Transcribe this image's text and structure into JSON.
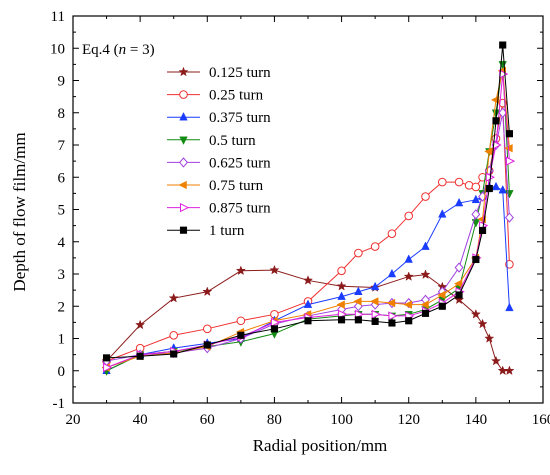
{
  "chart_data": {
    "type": "line",
    "title": "",
    "annotation": {
      "prefix": "Eq.4 (",
      "var": "n",
      "rest": " = 3)"
    },
    "xlabel": "Radial position/mm",
    "ylabel": "Depth of flow film/mm",
    "xlim": [
      20,
      160
    ],
    "ylim": [
      -1,
      11
    ],
    "xticks": [
      20,
      40,
      60,
      80,
      100,
      120,
      140,
      160
    ],
    "yticks": [
      -1,
      0,
      1,
      2,
      3,
      4,
      5,
      6,
      7,
      8,
      9,
      10,
      11
    ],
    "grid": false,
    "legend_position": "upper-left",
    "series": [
      {
        "name": "0.125 turn",
        "color": "#8b1a1a",
        "marker": "star",
        "x": [
          30,
          40,
          50,
          60,
          70,
          80,
          90,
          100,
          110,
          120,
          125,
          130,
          135,
          140,
          142,
          144,
          146,
          148,
          150
        ],
        "y": [
          0.3,
          1.42,
          2.25,
          2.45,
          3.1,
          3.12,
          2.8,
          2.62,
          2.58,
          2.92,
          2.98,
          2.6,
          2.2,
          1.75,
          1.45,
          1.0,
          0.3,
          0.0,
          0.0
        ]
      },
      {
        "name": "0.25 turn",
        "color": "#f03030",
        "marker": "circle-open",
        "x": [
          30,
          40,
          50,
          60,
          70,
          80,
          90,
          100,
          105,
          110,
          115,
          120,
          125,
          130,
          135,
          138,
          140,
          142,
          144,
          146,
          148,
          150
        ],
        "y": [
          0.3,
          0.7,
          1.1,
          1.3,
          1.55,
          1.75,
          2.15,
          3.1,
          3.65,
          3.85,
          4.25,
          4.8,
          5.4,
          5.85,
          5.85,
          5.75,
          5.7,
          6.0,
          6.2,
          7.2,
          8.3,
          3.3
        ]
      },
      {
        "name": "0.375 turn",
        "color": "#1a3cff",
        "marker": "triangle-up",
        "x": [
          30,
          40,
          50,
          60,
          70,
          80,
          90,
          100,
          105,
          110,
          115,
          120,
          125,
          130,
          135,
          140,
          142,
          144,
          146,
          148,
          150
        ],
        "y": [
          0.0,
          0.5,
          0.7,
          0.85,
          1.0,
          1.55,
          2.05,
          2.3,
          2.45,
          2.6,
          3.0,
          3.45,
          3.85,
          4.85,
          5.2,
          5.3,
          5.4,
          5.7,
          5.7,
          5.6,
          1.95
        ]
      },
      {
        "name": "0.5 turn",
        "color": "#148c14",
        "marker": "triangle-down",
        "x": [
          30,
          40,
          50,
          60,
          70,
          80,
          90,
          100,
          105,
          110,
          115,
          120,
          125,
          130,
          135,
          140,
          142,
          144,
          146,
          148,
          150
        ],
        "y": [
          0.0,
          0.5,
          0.6,
          0.75,
          0.9,
          1.15,
          1.6,
          1.7,
          1.75,
          1.75,
          1.7,
          1.75,
          1.9,
          2.2,
          2.55,
          4.6,
          5.5,
          6.8,
          8.0,
          9.5,
          5.5
        ]
      },
      {
        "name": "0.625 turn",
        "color": "#a040e0",
        "marker": "diamond-open",
        "x": [
          30,
          40,
          50,
          60,
          70,
          80,
          90,
          100,
          105,
          110,
          115,
          120,
          125,
          130,
          135,
          140,
          142,
          144,
          146,
          148,
          150
        ],
        "y": [
          0.3,
          0.5,
          0.55,
          0.7,
          1.0,
          1.45,
          1.7,
          1.9,
          2.0,
          2.05,
          2.1,
          2.1,
          2.2,
          2.45,
          3.2,
          4.85,
          5.4,
          6.2,
          7.0,
          8.0,
          4.75
        ]
      },
      {
        "name": "0.75 turn",
        "color": "#f08000",
        "marker": "triangle-left",
        "x": [
          30,
          40,
          50,
          60,
          70,
          80,
          90,
          100,
          105,
          110,
          115,
          120,
          125,
          130,
          135,
          140,
          142,
          144,
          146,
          148,
          150
        ],
        "y": [
          0.1,
          0.45,
          0.55,
          0.75,
          1.2,
          1.55,
          1.75,
          2.05,
          2.15,
          2.15,
          2.1,
          2.05,
          2.05,
          2.35,
          2.7,
          3.5,
          4.7,
          6.8,
          8.4,
          9.3,
          6.9
        ]
      },
      {
        "name": "0.875 turn",
        "color": "#e020e0",
        "marker": "triangle-right",
        "x": [
          30,
          40,
          50,
          60,
          70,
          80,
          90,
          100,
          105,
          110,
          115,
          120,
          125,
          130,
          135,
          140,
          142,
          144,
          146,
          148,
          150
        ],
        "y": [
          0.1,
          0.5,
          0.6,
          0.8,
          1.05,
          1.5,
          1.65,
          1.75,
          1.75,
          1.75,
          1.7,
          1.7,
          1.85,
          2.1,
          2.45,
          3.5,
          4.5,
          6.0,
          7.0,
          9.2,
          6.5
        ]
      },
      {
        "name": "1 turn",
        "color": "#000000",
        "marker": "square",
        "x": [
          30,
          40,
          50,
          60,
          70,
          80,
          90,
          100,
          105,
          110,
          115,
          120,
          125,
          130,
          135,
          140,
          142,
          144,
          146,
          148,
          150
        ],
        "y": [
          0.4,
          0.45,
          0.52,
          0.8,
          1.1,
          1.3,
          1.55,
          1.58,
          1.58,
          1.53,
          1.48,
          1.55,
          1.78,
          2.0,
          2.35,
          3.45,
          4.35,
          5.65,
          7.75,
          10.1,
          7.35
        ]
      }
    ]
  }
}
